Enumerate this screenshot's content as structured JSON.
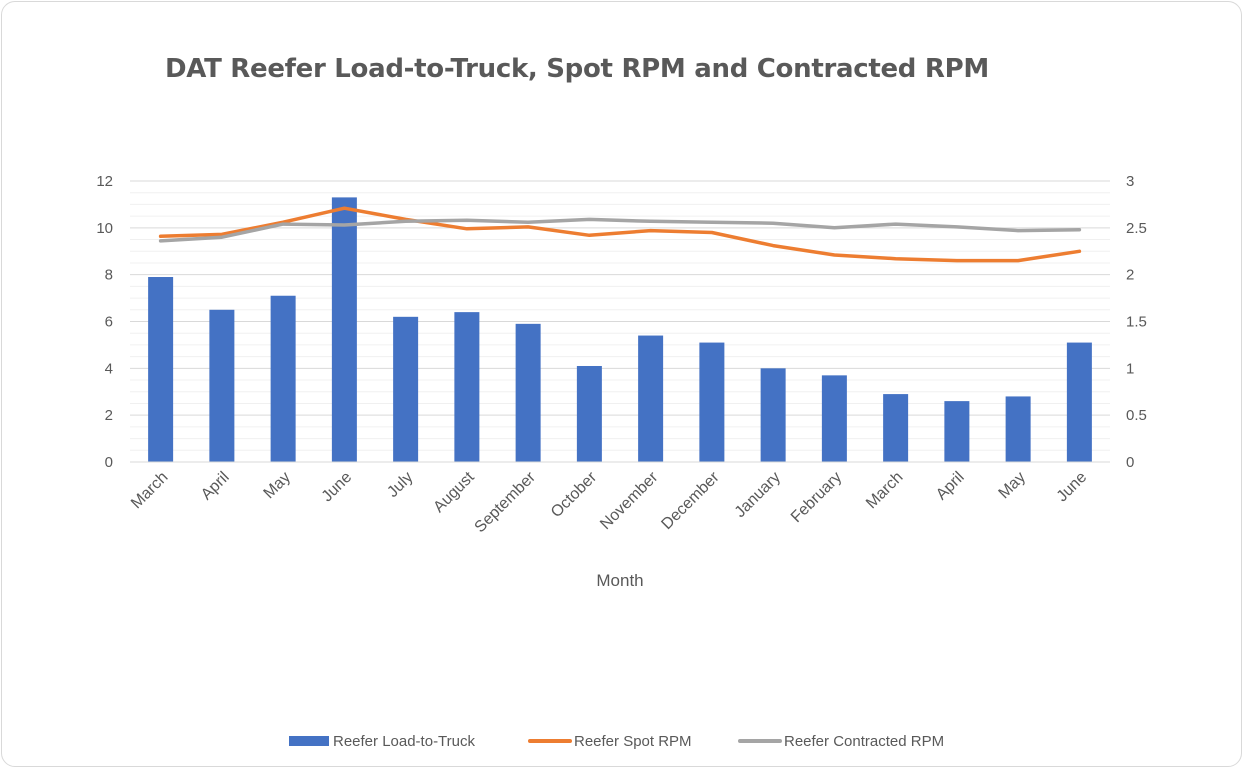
{
  "chart_data": {
    "type": "bar",
    "title": "DAT Reefer Load-to-Truck, Spot RPM and Contracted RPM",
    "xlabel": "Month",
    "ylabel": "",
    "y2label": "",
    "categories": [
      "March",
      "April",
      "May",
      "June",
      "July",
      "August",
      "September",
      "October",
      "November",
      "December",
      "January",
      "February",
      "March",
      "April",
      "May",
      "June"
    ],
    "ylim": [
      0,
      12
    ],
    "yticks": [
      "0",
      "2",
      "4",
      "6",
      "8",
      "10",
      "12"
    ],
    "y2lim": [
      0,
      3
    ],
    "y2ticks": [
      "0",
      "0.5",
      "1",
      "1.5",
      "2",
      "2.5",
      "3"
    ],
    "grid": true,
    "legend_position": "bottom",
    "series": [
      {
        "name": "Reefer Load-to-Truck",
        "type": "bar",
        "axis": "left",
        "color": "#4472c4",
        "values": [
          7.9,
          6.5,
          7.1,
          11.3,
          6.2,
          6.4,
          5.9,
          4.1,
          5.4,
          5.1,
          4.0,
          3.7,
          2.9,
          2.6,
          2.8,
          5.1
        ]
      },
      {
        "name": "Reefer Spot RPM",
        "type": "line",
        "axis": "right",
        "color": "#ed7d31",
        "values": [
          2.41,
          2.43,
          2.56,
          2.71,
          2.59,
          2.49,
          2.51,
          2.42,
          2.47,
          2.45,
          2.31,
          2.21,
          2.17,
          2.15,
          2.15,
          2.25
        ]
      },
      {
        "name": "Reefer Contracted RPM",
        "type": "line",
        "axis": "right",
        "color": "#a5a5a5",
        "values": [
          2.36,
          2.4,
          2.54,
          2.53,
          2.57,
          2.58,
          2.56,
          2.59,
          2.57,
          2.56,
          2.55,
          2.5,
          2.54,
          2.51,
          2.47,
          2.48
        ]
      }
    ]
  }
}
